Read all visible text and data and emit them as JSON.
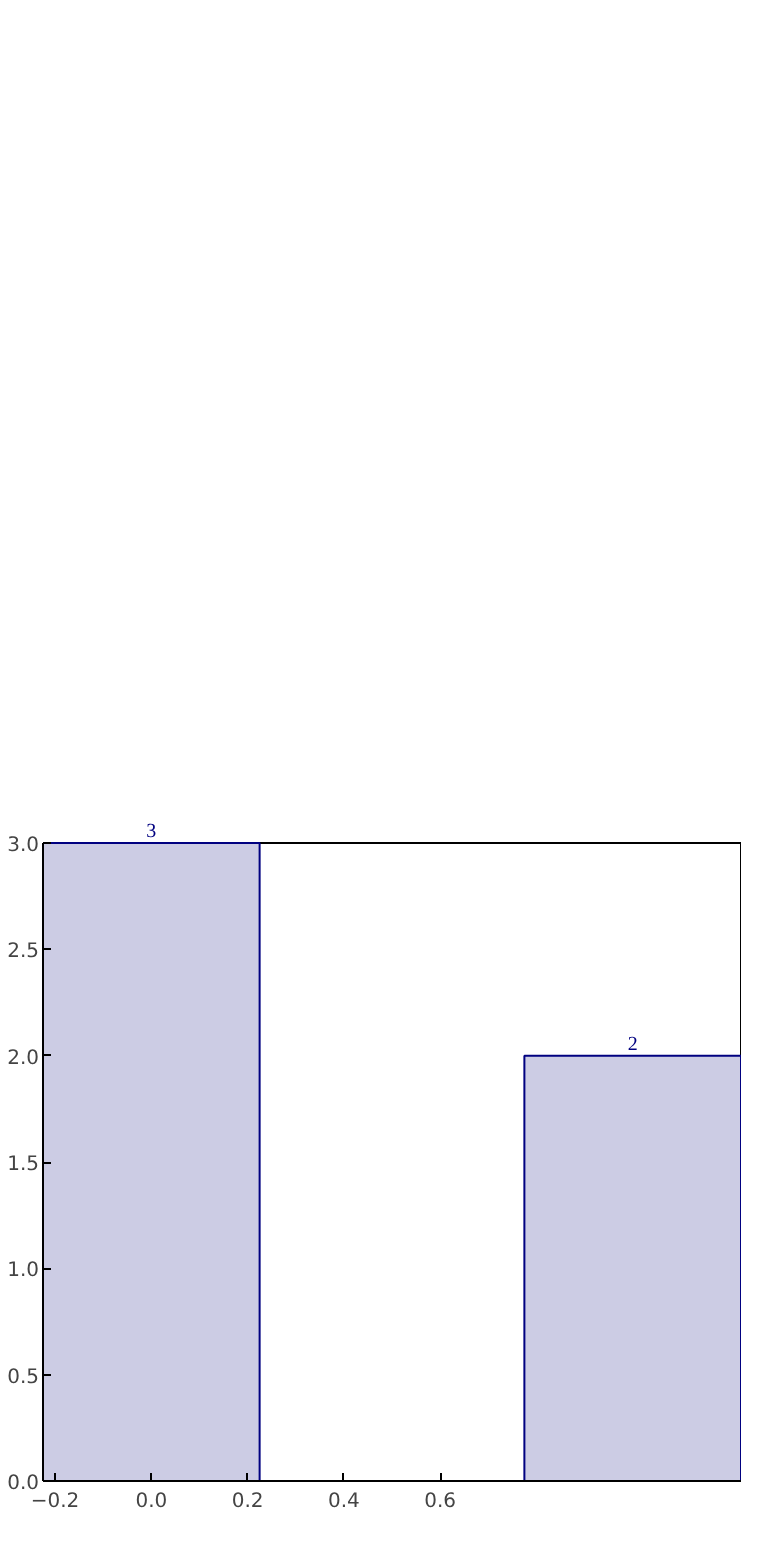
{
  "chart_data": {
    "type": "bar",
    "x": [
      0,
      1
    ],
    "values": [
      3,
      2
    ],
    "color": "#ccccE4",
    "xlim": [
      -0.225,
      1.225
    ],
    "ylim": [
      0,
      3
    ],
    "xticks": [
      -0.2,
      {
        "value": 0,
        "label": "0.0"
      },
      0.2,
      0.4,
      0.6
    ],
    "yticks": [
      {
        "value": 0,
        "label": "0.0"
      },
      0.5,
      {
        "value": 1,
        "label": "1.0"
      },
      1.5,
      {
        "value": 2,
        "label": "2.0"
      },
      2.5,
      {
        "value": 3,
        "label": "3.0"
      }
    ],
    "data_labels": true,
    "grid": false
  }
}
